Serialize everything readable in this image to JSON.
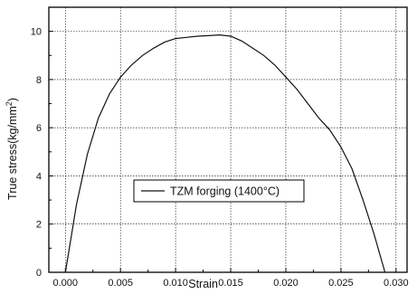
{
  "chart_data": {
    "type": "line",
    "xlabel": "Strain",
    "ylabel_main": "True stress(kg/mm",
    "ylabel_sup": "2",
    "ylabel_close": ")",
    "xlim": [
      -0.0015,
      0.031
    ],
    "ylim": [
      0,
      11
    ],
    "x_ticks": [
      0.0,
      0.005,
      0.01,
      0.015,
      0.02,
      0.025,
      0.03
    ],
    "x_tick_labels": [
      "0.000",
      "0.005",
      "0.010",
      "0.015",
      "0.020",
      "0.025",
      "0.030"
    ],
    "y_ticks": [
      0,
      2,
      4,
      6,
      8,
      10
    ],
    "y_tick_labels": [
      "0",
      "2",
      "4",
      "6",
      "8",
      "10"
    ],
    "grid": true,
    "legend_position": "center-right",
    "series": [
      {
        "name": "TZM forging (1400°C)",
        "color": "#111111",
        "x": [
          0.0,
          0.001,
          0.002,
          0.003,
          0.004,
          0.005,
          0.006,
          0.007,
          0.008,
          0.009,
          0.01,
          0.011,
          0.012,
          0.013,
          0.014,
          0.015,
          0.016,
          0.017,
          0.018,
          0.019,
          0.02,
          0.021,
          0.022,
          0.023,
          0.024,
          0.025,
          0.026,
          0.027,
          0.028,
          0.029
        ],
        "y": [
          0.0,
          2.8,
          4.9,
          6.4,
          7.4,
          8.1,
          8.6,
          9.0,
          9.3,
          9.55,
          9.7,
          9.75,
          9.8,
          9.82,
          9.85,
          9.8,
          9.6,
          9.3,
          9.0,
          8.6,
          8.1,
          7.6,
          7.0,
          6.4,
          5.9,
          5.2,
          4.3,
          3.0,
          1.6,
          0.0
        ]
      }
    ]
  }
}
